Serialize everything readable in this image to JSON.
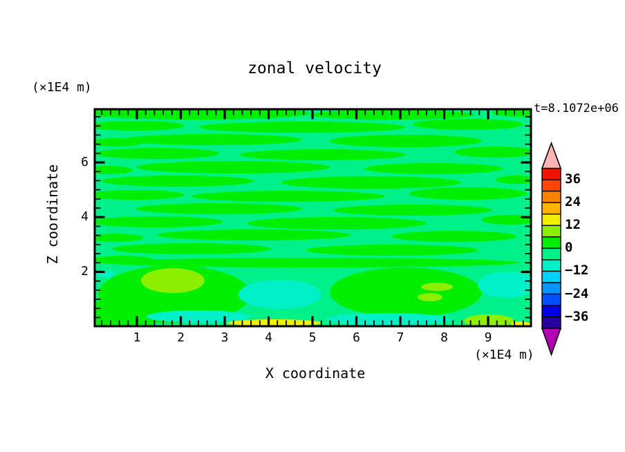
{
  "figure": {
    "title": "zonal velocity",
    "time_label": "t=8.1072e+06"
  },
  "axes": {
    "x_label": "X coordinate",
    "x_unit": "(×1E4 m)",
    "z_label": "Z coordinate",
    "z_unit": "(×1E4 m)",
    "x_tick_labels": [
      "1",
      "2",
      "3",
      "4",
      "5",
      "6",
      "7",
      "8",
      "9"
    ],
    "z_tick_labels": [
      "2",
      "4",
      "6"
    ]
  },
  "colorbar": {
    "tick_labels": [
      "36",
      "24",
      "12",
      "0",
      "−12",
      "−24",
      "−36"
    ],
    "band_colors": [
      "#f01400",
      "#ff4600",
      "#ff8200",
      "#ffb400",
      "#f0f000",
      "#8cee00",
      "#00ee00",
      "#00f08a",
      "#00f0c8",
      "#00d2ff",
      "#0096ff",
      "#0050ff",
      "#0000e6",
      "#2800a0"
    ],
    "over_color": "#ffb4b4",
    "under_color": "#b400b4",
    "level_min": -42,
    "level_max": 42,
    "level_step": 6
  },
  "chart_data": {
    "type": "filled-contour",
    "title": "zonal velocity",
    "xlabel": "X coordinate",
    "ylabel": "Z coordinate",
    "x_unit": "(×1E4 m)",
    "z_unit": "(×1E4 m)",
    "x_range": [
      0,
      10
    ],
    "z_range": [
      0,
      7.9
    ],
    "x_ticks": [
      1,
      2,
      3,
      4,
      5,
      6,
      7,
      8,
      9
    ],
    "z_ticks": [
      2,
      4,
      6
    ],
    "time_annotation": "t=8.1072e+06",
    "contour_levels": [
      -42,
      -36,
      -30,
      -24,
      -18,
      -12,
      -6,
      0,
      6,
      12,
      18,
      24,
      30,
      36,
      42
    ],
    "value_bands": {
      "background": "-6 to 0",
      "green_streaks": "0 to 6",
      "chartreuse_blobs": "6 to 12",
      "yellow_streaks": "12 to 18",
      "turquoise_patches": "-12 to -6"
    },
    "field": {
      "palette": {
        "g0": "#00f08a",
        "g1": "#00ee00",
        "ch": "#8cee00",
        "tq": "#00f0c8",
        "yl": "#f0f000"
      },
      "bg": "g0",
      "streaks": [
        [
          150,
          6,
          160,
          9
        ],
        [
          430,
          8,
          120,
          7
        ],
        [
          615,
          5,
          40,
          6
        ],
        [
          60,
          24,
          70,
          7
        ],
        [
          300,
          26,
          150,
          8
        ],
        [
          540,
          22,
          80,
          8
        ],
        [
          170,
          44,
          130,
          8
        ],
        [
          450,
          46,
          110,
          9
        ],
        [
          30,
          48,
          40,
          6
        ],
        [
          90,
          64,
          90,
          8
        ],
        [
          330,
          66,
          120,
          8
        ],
        [
          580,
          62,
          60,
          8
        ],
        [
          200,
          84,
          140,
          9
        ],
        [
          490,
          86,
          100,
          8
        ],
        [
          20,
          88,
          35,
          6
        ],
        [
          120,
          104,
          110,
          8
        ],
        [
          400,
          106,
          130,
          9
        ],
        [
          610,
          102,
          30,
          6
        ],
        [
          60,
          124,
          70,
          7
        ],
        [
          280,
          126,
          140,
          8
        ],
        [
          540,
          122,
          85,
          9
        ],
        [
          180,
          144,
          120,
          8
        ],
        [
          460,
          146,
          115,
          8
        ],
        [
          90,
          163,
          95,
          8
        ],
        [
          350,
          165,
          130,
          9
        ],
        [
          600,
          160,
          40,
          7
        ],
        [
          230,
          182,
          140,
          8
        ],
        [
          520,
          184,
          90,
          8
        ],
        [
          30,
          186,
          40,
          6
        ],
        [
          140,
          202,
          115,
          8
        ],
        [
          430,
          204,
          125,
          8
        ],
        [
          315,
          222,
          300,
          7
        ],
        [
          40,
          218,
          45,
          6
        ]
      ],
      "blobs": [
        {
          "c": "g1",
          "e": [
            115,
            268,
            110,
            42
          ]
        },
        {
          "c": "g1",
          "e": [
            30,
            300,
            60,
            25
          ]
        },
        {
          "c": "g1",
          "e": [
            450,
            265,
            110,
            36
          ]
        },
        {
          "c": "tq",
          "e": [
            15,
            238,
            14,
            5
          ]
        },
        {
          "c": "tq",
          "e": [
            268,
            268,
            60,
            21
          ]
        },
        {
          "c": "tq",
          "e": [
            596,
            254,
            42,
            19
          ]
        },
        {
          "c": "tq",
          "e": [
            150,
            300,
            75,
            9
          ]
        },
        {
          "c": "tq",
          "e": [
            425,
            304,
            90,
            9
          ]
        },
        {
          "c": "ch",
          "e": [
            113,
            248,
            46,
            18
          ]
        },
        {
          "c": "ch",
          "e": [
            495,
            257,
            23,
            6
          ]
        },
        {
          "c": "ch",
          "e": [
            485,
            272,
            18,
            6
          ]
        },
        {
          "c": "ch",
          "e": [
            570,
            306,
            36,
            9
          ]
        },
        {
          "c": "yl",
          "e": [
            260,
            309,
            68,
            5
          ]
        },
        {
          "c": "yl",
          "e": [
            616,
            311,
            14,
            4
          ]
        }
      ]
    }
  }
}
